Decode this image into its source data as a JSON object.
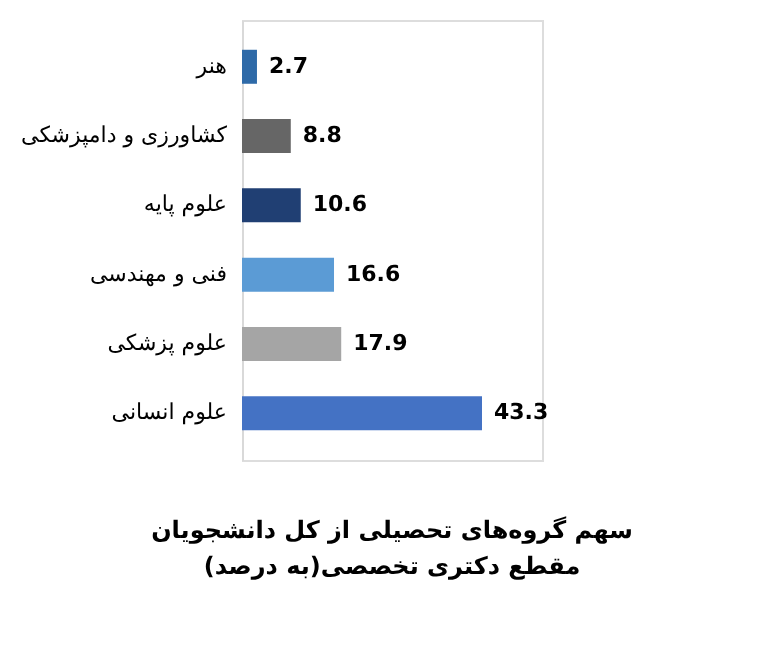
{
  "chart_data": {
    "type": "bar",
    "orientation": "horizontal",
    "title": "سهم گروه‌های تحصیلی از کل دانشجویان\nمقطع دکتری تخصصی(به درصد)",
    "categories": [
      "هنر",
      "کشاورزی و دامپزشکی",
      "علوم پایه",
      "فنی و مهندسی",
      "علوم پزشکی",
      "علوم انسانی"
    ],
    "values": [
      2.7,
      8.8,
      10.6,
      16.6,
      17.9,
      43.3
    ],
    "colors": [
      "#2e6aa8",
      "#666666",
      "#203f73",
      "#5b9bd5",
      "#a5a5a5",
      "#4472c4"
    ],
    "data_labels": true,
    "grid": false
  }
}
